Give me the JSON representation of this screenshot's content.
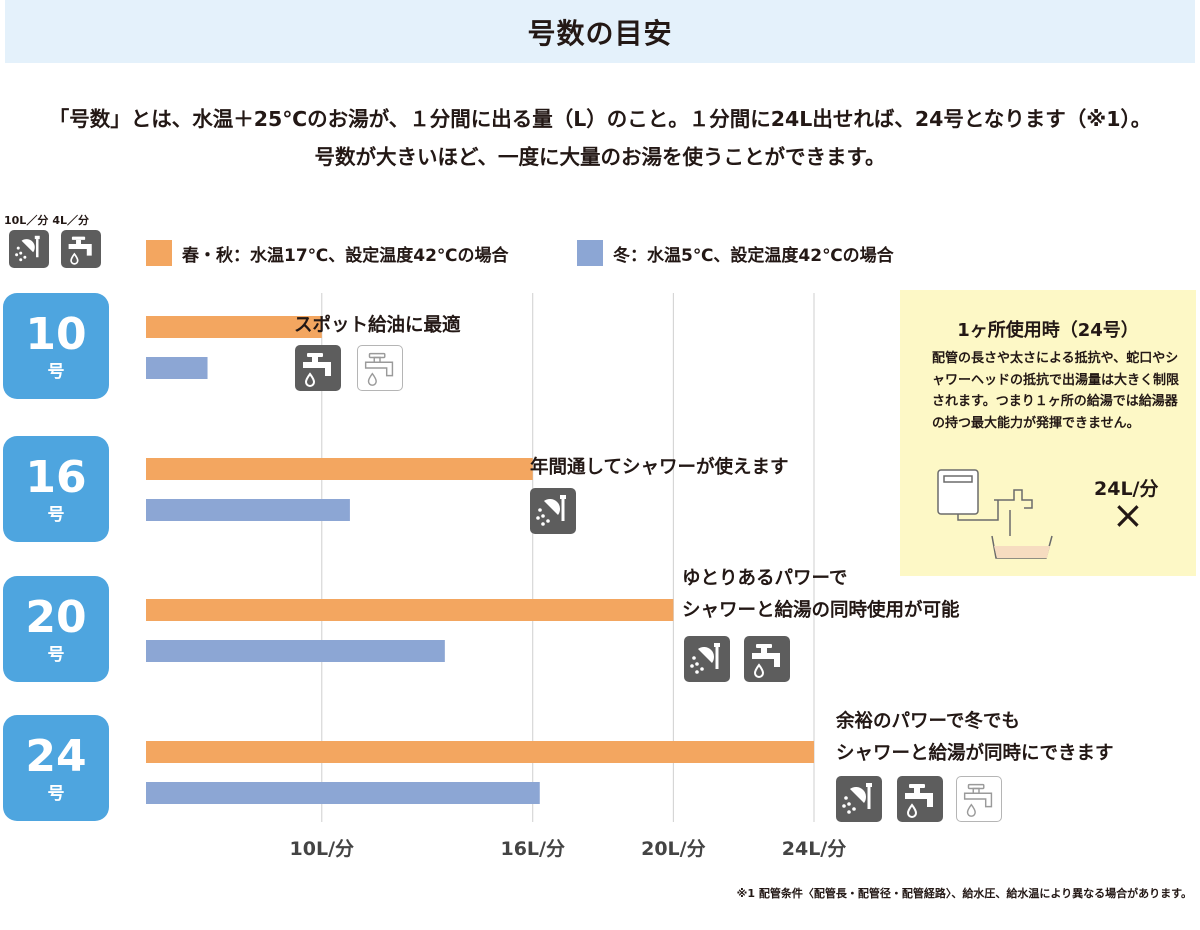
{
  "header": {
    "title": "号数の目安"
  },
  "intro": {
    "line1": "「号数」とは、水温＋25℃のお湯が、１分間に出る量（L）のこと。１分間に24L出せれば、24号となります（※1）。",
    "line2": "号数が大きいほど、一度に大量のお湯を使うことができます。"
  },
  "flow_labels": {
    "shower": "10L／分",
    "faucet": "4L／分"
  },
  "legend": [
    {
      "label": "春・秋：水温17℃、設定温度42℃の場合",
      "color": "#f3a660"
    },
    {
      "label": "冬：水温5℃、設定温度42℃の場合",
      "color": "#8ca6d4"
    }
  ],
  "chart_data": {
    "type": "bar",
    "orientation": "horizontal",
    "categories": [
      "10号",
      "16号",
      "20号",
      "24号"
    ],
    "series": [
      {
        "name": "春・秋：水温17℃、設定温度42℃の場合",
        "color": "#f3a660",
        "values": [
          10,
          16,
          20,
          24
        ]
      },
      {
        "name": "冬：水温5℃、設定温度42℃の場合",
        "color": "#8ca6d4",
        "values": [
          6.75,
          10.8,
          13.5,
          16.2
        ]
      }
    ],
    "xlim": [
      5,
      24
    ],
    "tick_values": [
      10,
      16,
      20,
      24
    ],
    "tick_labels": [
      "10L/分",
      "16L/分",
      "20L/分",
      "24L/分"
    ],
    "grid": true
  },
  "rows": [
    {
      "number": "10",
      "unit": "号",
      "lines": [
        "スポット給油に最適"
      ]
    },
    {
      "number": "16",
      "unit": "号",
      "lines": [
        "年間通してシャワーが使えます"
      ]
    },
    {
      "number": "20",
      "unit": "号",
      "lines": [
        "ゆとりあるパワーで",
        "シャワーと給湯の同時使用が可能"
      ]
    },
    {
      "number": "24",
      "unit": "号",
      "lines": [
        "余裕のパワーで冬でも",
        "シャワーと給湯が同時にできます"
      ]
    }
  ],
  "icons": {
    "shower": "shower-icon",
    "faucet": "faucet-icon",
    "faucet_outline": "faucet-outline-icon"
  },
  "note": {
    "title": "1ヶ所使用時（24号）",
    "body": "配管の長さや太さによる抵抗や、蛇口やシャワーヘッドの抵抗で出湯量は大きく制限されます。つまり１ヶ所の給湯では給湯器の持つ最大能力が発揮できません。",
    "flow": "24L/分",
    "mark": "×"
  },
  "footnote": "※1 配管条件〈配管長・配管径・配管経路〉、給水圧、給水温により異なる場合があります。"
}
